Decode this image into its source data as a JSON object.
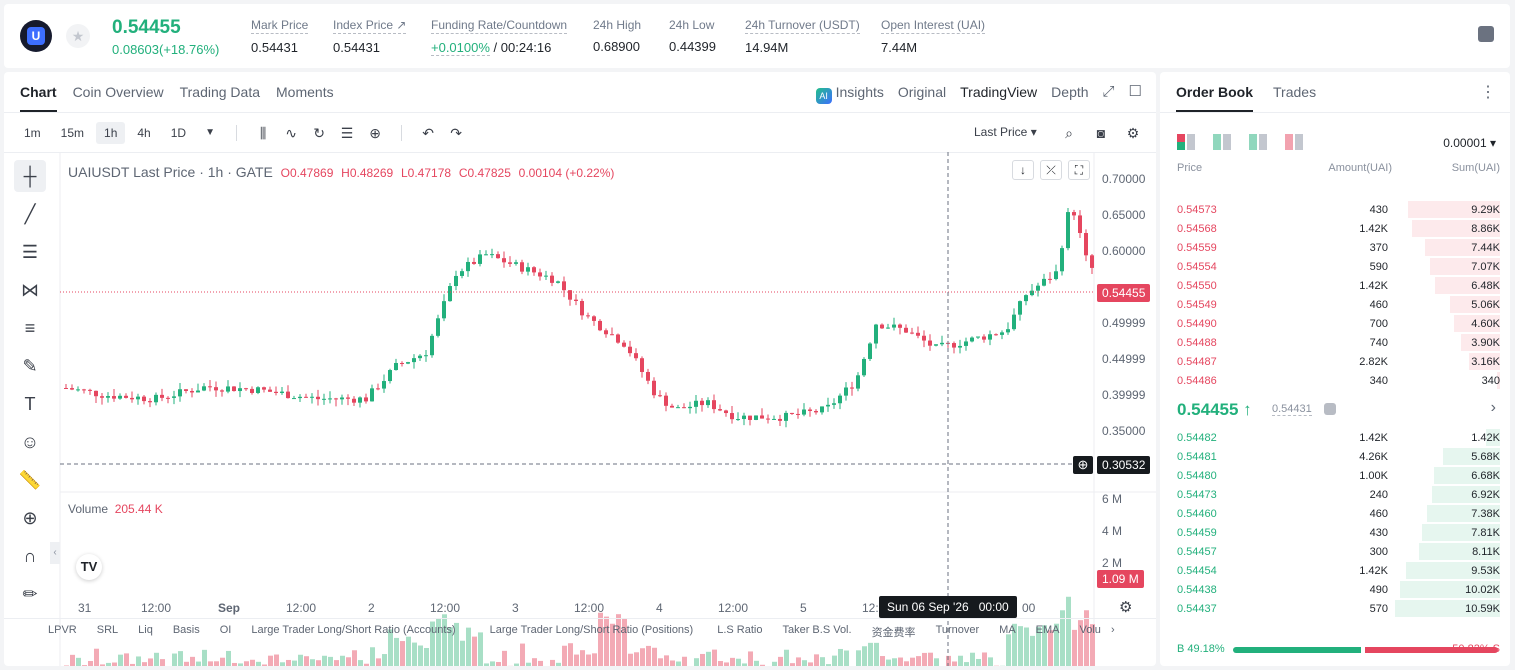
{
  "header": {
    "price": "0.54455",
    "change": "0.08603(+18.76%)",
    "stats": [
      {
        "label": "Mark Price",
        "value": "0.54431"
      },
      {
        "label": "Index Price ↗",
        "value": "0.54431"
      },
      {
        "label": "Funding Rate/Countdown",
        "value": "+0.0100%",
        "value2": "/ 00:24:16"
      },
      {
        "label": "24h High",
        "value": "0.68900"
      },
      {
        "label": "24h Low",
        "value": "0.44399"
      },
      {
        "label": "24h Turnover (USDT)",
        "value": "14.94M"
      },
      {
        "label": "Open Interest (UAI)",
        "value": "7.44M"
      }
    ]
  },
  "chart_tabs": {
    "chart": "Chart",
    "coin_overview": "Coin Overview",
    "trading_data": "Trading Data",
    "moments": "Moments"
  },
  "view_tabs": {
    "insights": "Insights",
    "original": "Original",
    "tradingview": "TradingView",
    "depth": "Depth"
  },
  "timeframes": [
    "1m",
    "15m",
    "1h",
    "4h",
    "1D"
  ],
  "last_price_label": "Last Price",
  "legend": {
    "symbol": "UAIUSDT Last Price · 1h · GATE",
    "o": "O0.47869",
    "h": "H0.48269",
    "l": "L0.47178",
    "c": "C0.47825",
    "chg": "0.00104 (+0.22%)"
  },
  "volume_legend": {
    "label": "Volume",
    "value": "205.44 K"
  },
  "price_axis": [
    "0.70000",
    "0.65000",
    "0.60000",
    "0.54455",
    "0.49999",
    "0.44999",
    "0.39999",
    "0.35000",
    "0.30532"
  ],
  "volume_axis": [
    "6 M",
    "4 M",
    "2 M",
    "1.09 M"
  ],
  "time_axis": [
    "31",
    "12:00",
    "Sep",
    "12:00",
    "2",
    "12:00",
    "3",
    "12:00",
    "4",
    "12:00",
    "5",
    "12:"
  ],
  "crosshair_label": "Sun 06 Sep '26   00:00",
  "crosshair_time_right": "00",
  "bottom_tools": [
    "LPVR",
    "SRL",
    "Liq",
    "Basis",
    "OI",
    "Large Trader Long/Short Ratio (Accounts)",
    "Large Trader Long/Short Ratio (Positions)",
    "L.S Ratio",
    "Taker B.S Vol.",
    "资金费率",
    "Turnover",
    "MA",
    "EMA",
    "Volu"
  ],
  "orderbook": {
    "tabs": {
      "book": "Order Book",
      "trades": "Trades"
    },
    "precision": "0.00001",
    "headers": {
      "price": "Price",
      "amount": "Amount(UAI)",
      "sum": "Sum(UAI)"
    },
    "asks": [
      {
        "p": "0.54573",
        "a": "430",
        "s": "9.29K",
        "depth": 0.88
      },
      {
        "p": "0.54568",
        "a": "1.42K",
        "s": "8.86K",
        "depth": 0.84
      },
      {
        "p": "0.54559",
        "a": "370",
        "s": "7.44K",
        "depth": 0.71
      },
      {
        "p": "0.54554",
        "a": "590",
        "s": "7.07K",
        "depth": 0.67
      },
      {
        "p": "0.54550",
        "a": "1.42K",
        "s": "6.48K",
        "depth": 0.62
      },
      {
        "p": "0.54549",
        "a": "460",
        "s": "5.06K",
        "depth": 0.48
      },
      {
        "p": "0.54490",
        "a": "700",
        "s": "4.60K",
        "depth": 0.44
      },
      {
        "p": "0.54488",
        "a": "740",
        "s": "3.90K",
        "depth": 0.37
      },
      {
        "p": "0.54487",
        "a": "2.82K",
        "s": "3.16K",
        "depth": 0.3
      },
      {
        "p": "0.54486",
        "a": "340",
        "s": "340",
        "depth": 0.03
      }
    ],
    "mid": {
      "price": "0.54455 ↑",
      "mark": "0.54431"
    },
    "bids": [
      {
        "p": "0.54482",
        "a": "1.42K",
        "s": "1.42K",
        "depth": 0.13
      },
      {
        "p": "0.54481",
        "a": "4.26K",
        "s": "5.68K",
        "depth": 0.54
      },
      {
        "p": "0.54480",
        "a": "1.00K",
        "s": "6.68K",
        "depth": 0.63
      },
      {
        "p": "0.54473",
        "a": "240",
        "s": "6.92K",
        "depth": 0.65
      },
      {
        "p": "0.54460",
        "a": "460",
        "s": "7.38K",
        "depth": 0.7
      },
      {
        "p": "0.54459",
        "a": "430",
        "s": "7.81K",
        "depth": 0.74
      },
      {
        "p": "0.54457",
        "a": "300",
        "s": "8.11K",
        "depth": 0.77
      },
      {
        "p": "0.54454",
        "a": "1.42K",
        "s": "9.53K",
        "depth": 0.9
      },
      {
        "p": "0.54438",
        "a": "490",
        "s": "10.02K",
        "depth": 0.95
      },
      {
        "p": "0.54437",
        "a": "570",
        "s": "10.59K",
        "depth": 1.0
      }
    ],
    "buy_ratio": "B 49.18%",
    "sell_ratio": "50.82% S",
    "buy_fraction": 0.4918
  },
  "colors": {
    "up": "#22b07c",
    "down": "#e5465f",
    "accent": "#3d6eff"
  }
}
